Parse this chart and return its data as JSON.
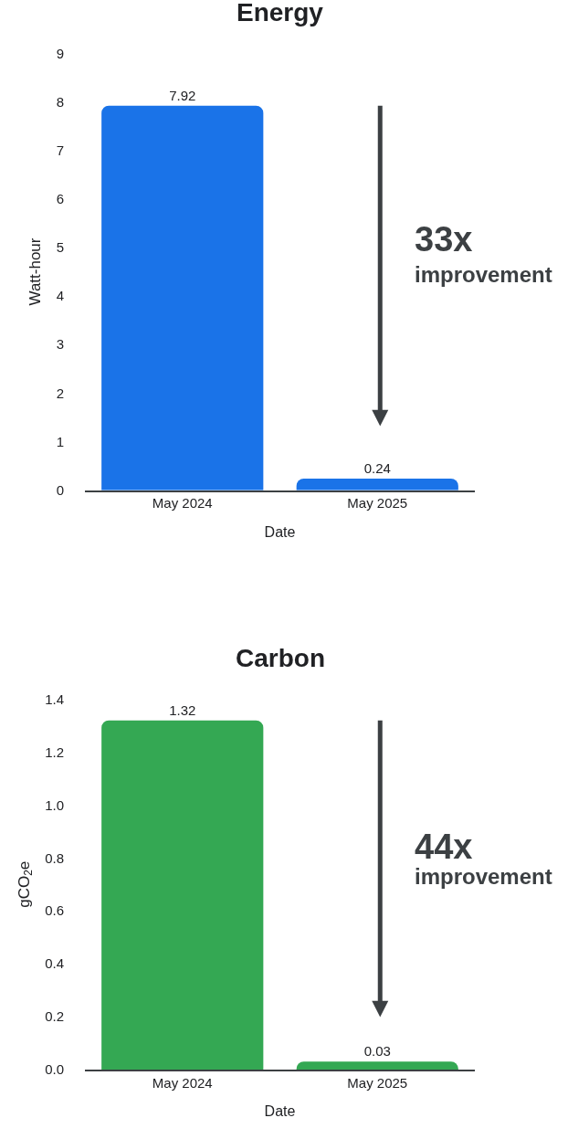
{
  "chart_data": [
    {
      "type": "bar",
      "title": "Energy",
      "xlabel": "Date",
      "ylabel": "Watt-hour",
      "categories": [
        "May 2024",
        "May 2025"
      ],
      "values": [
        7.92,
        0.24
      ],
      "color": "#1a73e8",
      "ylim": [
        0,
        9
      ],
      "yticks": [
        0,
        1,
        2,
        3,
        4,
        5,
        6,
        7,
        8,
        9
      ],
      "data_labels": true,
      "annotations": [
        "33x",
        "improvement"
      ]
    },
    {
      "type": "bar",
      "title": "Carbon",
      "xlabel": "Date",
      "ylabel": "gCO$_{2}$e",
      "categories": [
        "May 2024",
        "May 2025"
      ],
      "values": [
        1.32,
        0.03
      ],
      "color": "#34a853",
      "ylim": [
        0,
        1.4
      ],
      "yticks": [
        {
          "value": 0,
          "label": "0.0"
        },
        0.2,
        0.4,
        0.6,
        0.8,
        {
          "value": 1,
          "label": "1.0"
        },
        1.2,
        1.4
      ],
      "data_labels": true,
      "annotations": [
        "44x",
        "improvement"
      ]
    }
  ]
}
